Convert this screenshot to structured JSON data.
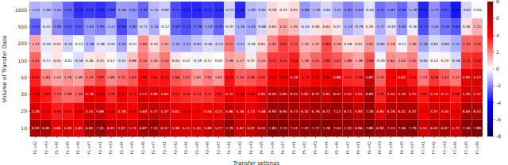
{
  "chart_data": {
    "type": "heatmap",
    "xlabel": "Transfer settings",
    "ylabel": "Volume of Transfer Data",
    "x_categories": [
      "f1->f2",
      "f1->f3",
      "f1->f4",
      "f1->f5",
      "f1->f6",
      "f1->f7",
      "f2->f1",
      "f2->f3",
      "f2->f4",
      "f2->f5",
      "f2->f6",
      "f2->f7",
      "f3->f1",
      "f3->f2",
      "f3->f4",
      "f3->f5",
      "f3->f6",
      "f3->f7",
      "f4->f1",
      "f4->f2",
      "f4->f3",
      "f4->f5",
      "f4->f6",
      "f4->f7",
      "f5->f1",
      "f5->f2",
      "f5->f3",
      "f5->f4",
      "f5->f6",
      "f5->f7",
      "f6->f1",
      "f6->f2",
      "f6->f3",
      "f6->f4",
      "f6->f5",
      "f6->f7",
      "f7->f1",
      "f7->f2",
      "f7->f3",
      "f7->f4",
      "f7->f5",
      "f7->f6"
    ],
    "y_categories": [
      1000,
      500,
      200,
      100,
      50,
      30,
      20,
      10
    ],
    "cells": [
      [
        -1.21,
        -1.06,
        -1.41,
        -2.41,
        -3.24,
        -3.05,
        -3.26,
        -2.83,
        -1.56,
        -1.65,
        -2.42,
        -1.11,
        -0.82,
        -2.77,
        -3.31,
        -3.35,
        -3.11,
        -3.28,
        -0.72,
        -3.36,
        -1.09,
        -0.91,
        0.59,
        0.33,
        0.61,
        -1.66,
        -1.19,
        -0.61,
        -1.21,
        -1.93,
        -1.63,
        -0.44,
        -2.21,
        -1.87,
        -2.36,
        -1.28,
        -3.43,
        -1.73,
        -2.67,
        -3.64,
        -0.61,
        -0.04
      ],
      [
        -2.51,
        -0.41,
        -1.85,
        -2.47,
        -2.57,
        -1.63,
        -1.95,
        -1.21,
        -2.85,
        -1.82,
        -0.71,
        -1.31,
        -0.12,
        -2.43,
        -2.75,
        -2.29,
        -1.53,
        -2.41,
        -0.37,
        -1.26,
        -1.43,
        -0.66,
        0.64,
        1.42,
        1.05,
        -0.44,
        0.46,
        0.65,
        0.37,
        -1.24,
        -0.79,
        0.34,
        -1.27,
        -0.43,
        -1.65,
        -0.26,
        -2.77,
        -1.44,
        -2.19,
        -2.64,
        0.46,
        1.25
      ],
      [
        1.43,
        -0.34,
        0.45,
        -0.76,
        -0.13,
        -1.18,
        -0.38,
        -0.41,
        -1.42,
        -0.21,
        1.84,
        0.53,
        1.47,
        -1.32,
        -1.37,
        -0.97,
        -0.56,
        -0.73,
        2.17,
        -1.11,
        -0.26,
        0.61,
        1.95,
        3.02,
        2.71,
        1.23,
        1.37,
        2.84,
        1.59,
        0.49,
        0.62,
        1.62,
        -0.85,
        1.18,
        -0.21,
        1.36,
        -1.46,
        -0.61,
        -0.83,
        -1.27,
        2.43,
        2.56
      ],
      [
        2.47,
        -0.17,
        0.45,
        -0.01,
        -0.56,
        0.36,
        0.55,
        0.12,
        -0.47,
        0.98,
        2.14,
        1.34,
        2.14,
        0.44,
        0.12,
        -0.19,
        0.17,
        0.03,
        1.49,
        1.27,
        0.37,
        1.55,
        3.11,
        3.14,
        3.55,
        1.78,
        2.41,
        2.96,
        2.62,
        1.86,
        1.38,
        2.69,
        -0.19,
        1.81,
        1.63,
        2.02,
        -0.61,
        0.13,
        0.19,
        -0.58,
        3.21,
        3.44
      ],
      [
        3.51,
        1.83,
        1.43,
        1.76,
        1.49,
        2.33,
        2.97,
        1.89,
        2.31,
        2.63,
        3.83,
        3.61,
        3.72,
        2.68,
        2.37,
        1.61,
        2.02,
        1.62,
        3.74,
        2.55,
        2.66,
        3.02,
        4.14,
        4.41,
        5.18,
        3.73,
        4.21,
        4.45,
        4.88,
        3.42,
        3.36,
        5.82,
        2.43,
        4.16,
        4.63,
        3.61,
        2.13,
        3.18,
        2.57,
        2.12,
        4.85,
        5.17
      ],
      [
        4.36,
        3.62,
        2.75,
        2.38,
        2.49,
        4.78,
        4.46,
        3.28,
        4.21,
        3.72,
        5.17,
        4.94,
        4.61,
        3.52,
        3.34,
        3.13,
        3.17,
        3.62,
        4.72,
        4.36,
        3.86,
        4.81,
        6.05,
        5.95,
        6.37,
        5.62,
        6.22,
        5.61,
        6.47,
        5.52,
        5.01,
        6.83,
        3.42,
        5.44,
        5.76,
        5.21,
        3.61,
        4.79,
        4.71,
        3.66,
        5.35,
        5.12
      ],
      [
        5.28,
        4.31,
        3.56,
        3.74,
        4.38,
        5.51,
        5.66,
        4.32,
        4.78,
        4.21,
        5.63,
        5.77,
        5.37,
        4.61,
        4.43,
        4.27,
        4.56,
        4.57,
        5.86,
        5.36,
        4.73,
        5.48,
        6.93,
        6.94,
        6.73,
        6.31,
        6.78,
        6.72,
        7.12,
        6.71,
        5.93,
        7.18,
        4.85,
        6.28,
        6.41,
        6.37,
        4.21,
        5.37,
        5.34,
        4.47,
        6.64,
        6.52
      ],
      [
        6.93,
        6.81,
        4.86,
        5.39,
        4.81,
        6.81,
        7.31,
        6.01,
        5.97,
        5.74,
        6.87,
        7.13,
        6.17,
        5.38,
        5.41,
        5.45,
        5.89,
        5.77,
        7.29,
        5.67,
        6.07,
        6.41,
        7.83,
        7.74,
        7.15,
        7.47,
        7.72,
        7.78,
        7.44,
        7.32,
        6.96,
        7.89,
        6.93,
        7.24,
        7.46,
        7.79,
        5.51,
        6.43,
        6.97,
        5.72,
        7.56,
        7.89
      ]
    ],
    "data_labels": true,
    "colorbar": {
      "range": [
        -8,
        8
      ],
      "ticks": [
        -8,
        -6,
        -4,
        -2,
        0,
        2,
        4,
        6,
        8
      ]
    }
  }
}
